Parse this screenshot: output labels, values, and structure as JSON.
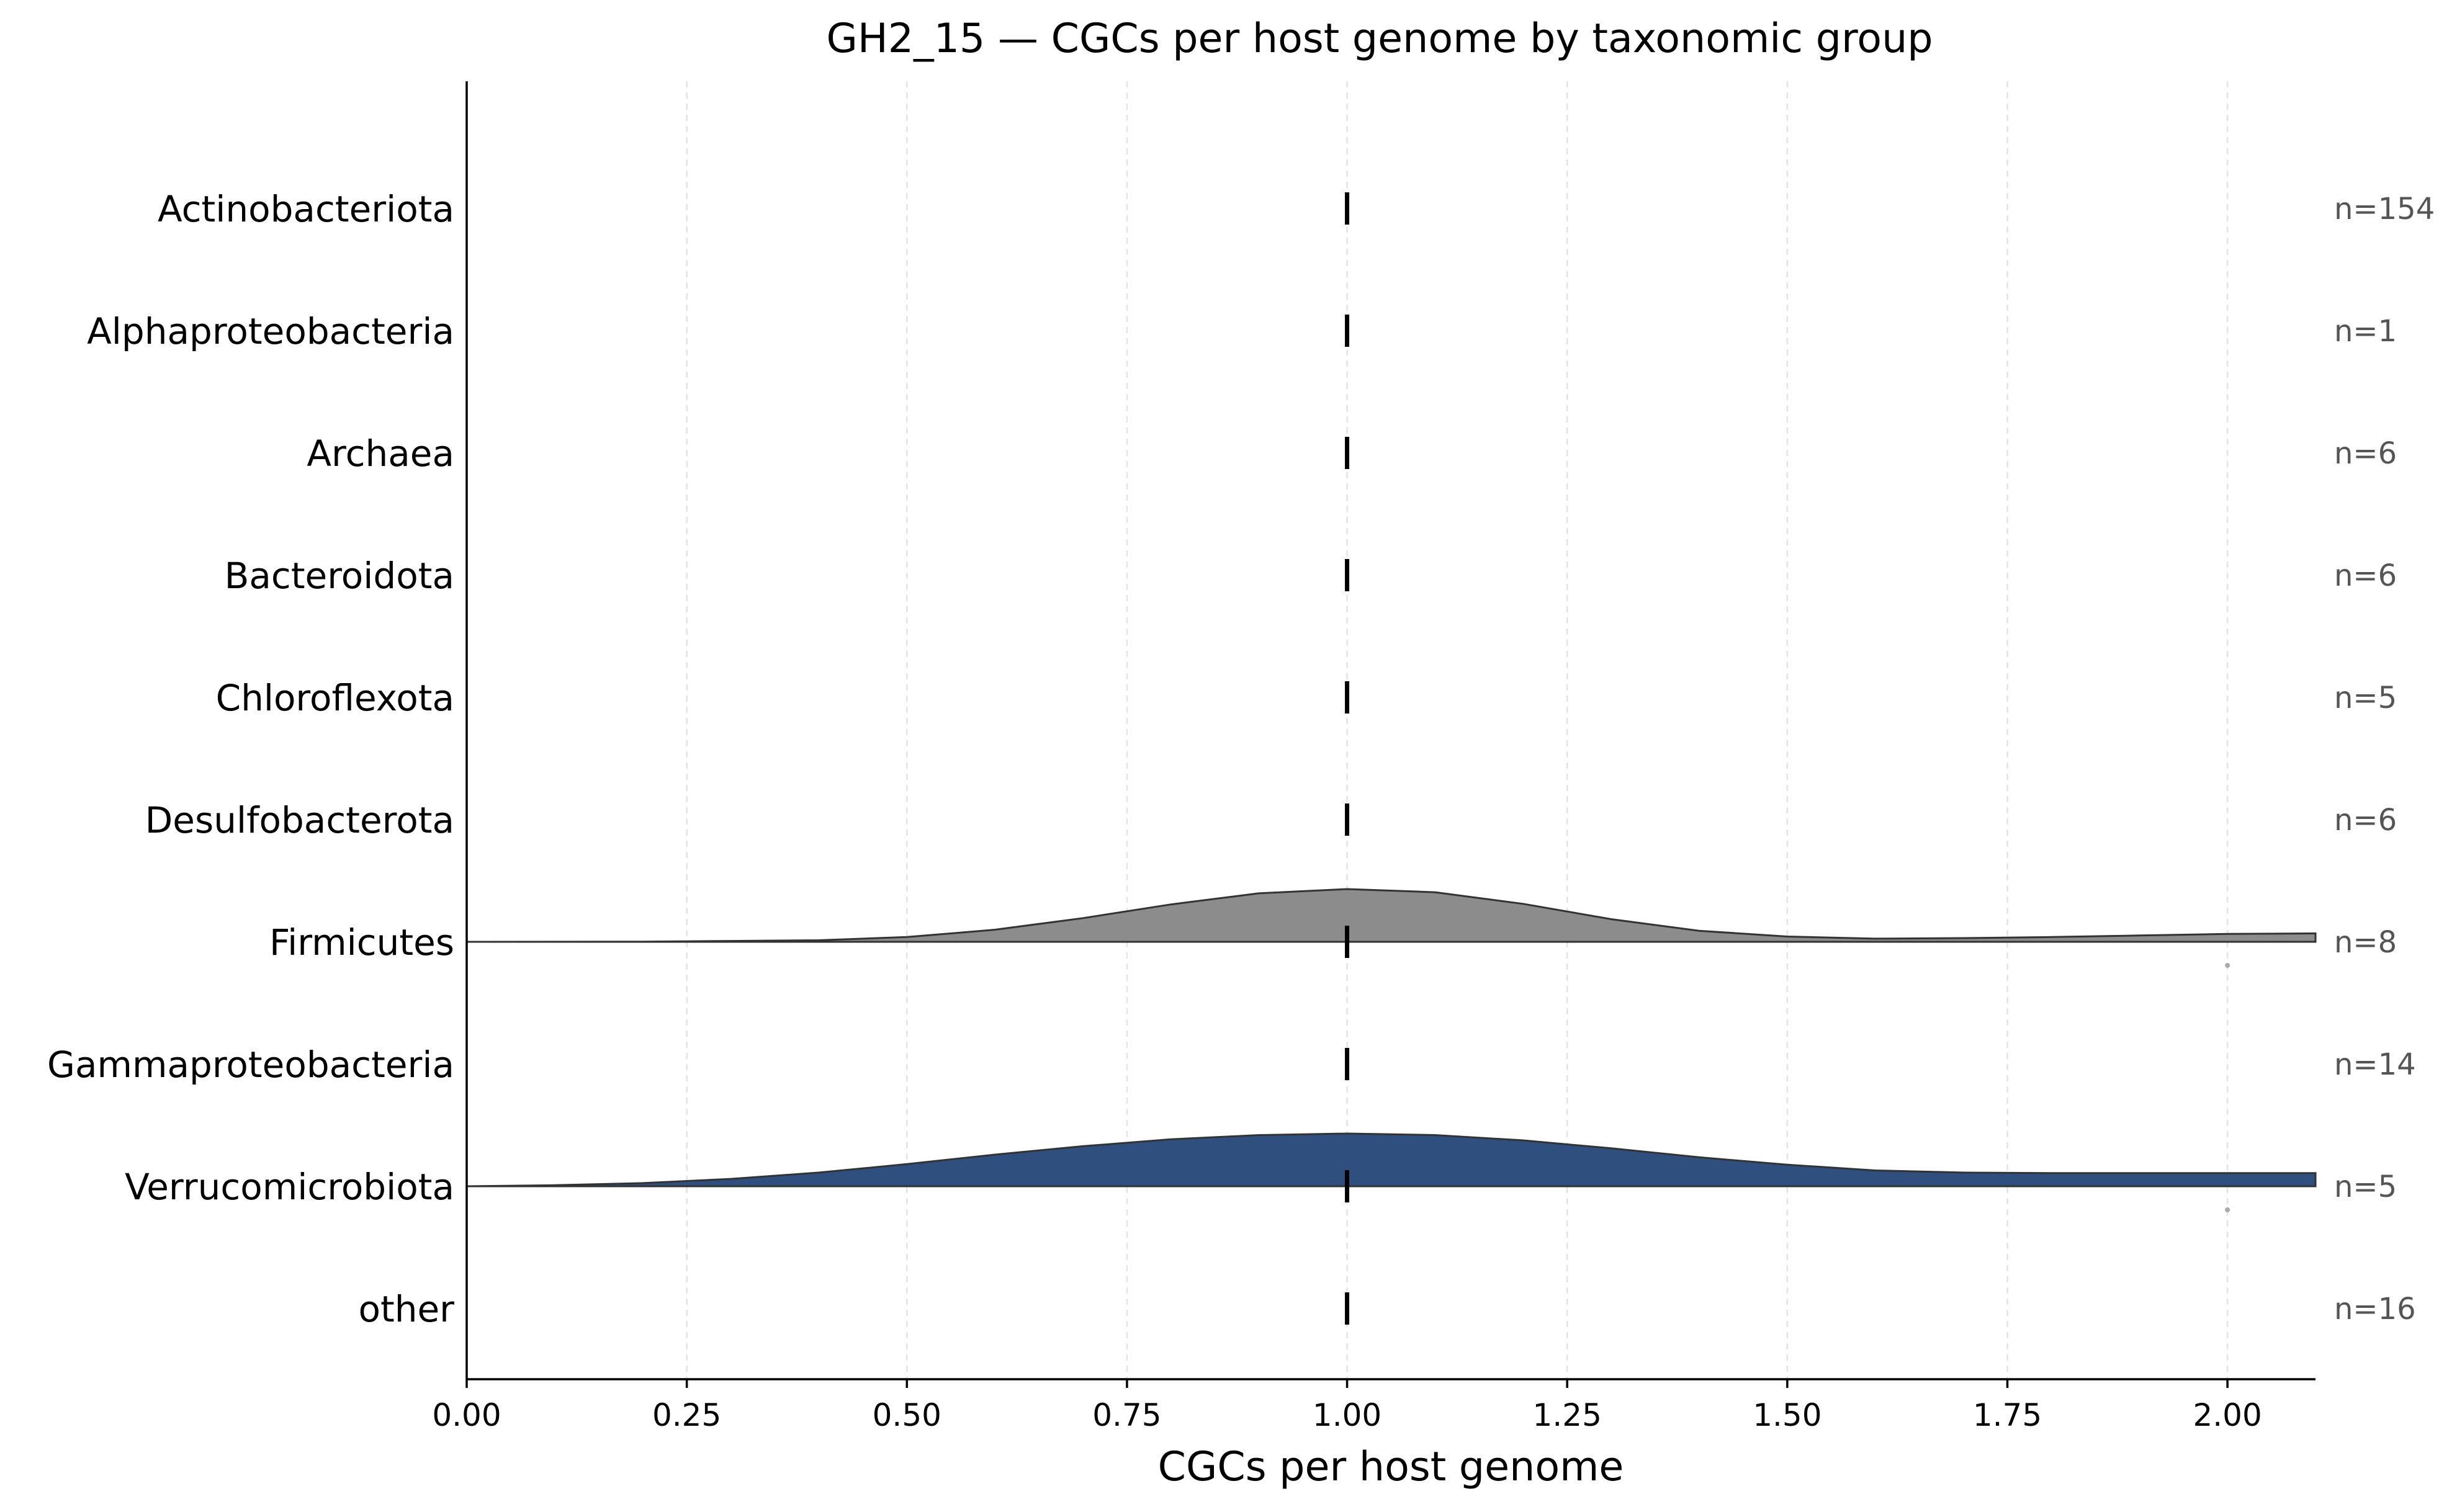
{
  "chart_data": {
    "type": "ridgeline",
    "title": "GH2_15 — CGCs per host genome by taxonomic group",
    "xlabel": "CGCs per host genome",
    "ylabel": "",
    "xlim": [
      0.0,
      2.1
    ],
    "xticks": [
      "0.00",
      "0.25",
      "0.50",
      "0.75",
      "1.00",
      "1.25",
      "1.50",
      "1.75",
      "2.00"
    ],
    "xtick_values": [
      0.0,
      0.25,
      0.5,
      0.75,
      1.0,
      1.25,
      1.5,
      1.75,
      2.0
    ],
    "grid_x": true,
    "categories": [
      "Actinobacteriota",
      "Alphaproteobacteria",
      "Archaea",
      "Bacteroidota",
      "Chloroflexota",
      "Desulfobacterota",
      "Firmicutes",
      "Gammaproteobacteria",
      "Verrucomicrobiota",
      "other"
    ],
    "groups": [
      {
        "name": "Actinobacteriota",
        "n_label": "n=154",
        "median": 1.0
      },
      {
        "name": "Alphaproteobacteria",
        "n_label": "n=1",
        "median": 1.0
      },
      {
        "name": "Archaea",
        "n_label": "n=6",
        "median": 1.0
      },
      {
        "name": "Bacteroidota",
        "n_label": "n=6",
        "median": 1.0
      },
      {
        "name": "Chloroflexota",
        "n_label": "n=5",
        "median": 1.0
      },
      {
        "name": "Desulfobacterota",
        "n_label": "n=6",
        "median": 1.0
      },
      {
        "name": "Firmicutes",
        "n_label": "n=8",
        "median": 1.0,
        "color": "#8c8c8c",
        "outliers": [
          2.0
        ],
        "density": {
          "x": [
            0.0,
            0.2,
            0.4,
            0.5,
            0.6,
            0.7,
            0.8,
            0.9,
            1.0,
            1.1,
            1.2,
            1.3,
            1.4,
            1.5,
            1.6,
            1.7,
            1.8,
            1.9,
            2.0,
            2.1
          ],
          "y": [
            0.0,
            0.003,
            0.03,
            0.09,
            0.23,
            0.45,
            0.71,
            0.92,
            1.0,
            0.94,
            0.72,
            0.43,
            0.21,
            0.1,
            0.06,
            0.07,
            0.09,
            0.12,
            0.15,
            0.16
          ]
        }
      },
      {
        "name": "Gammaproteobacteria",
        "n_label": "n=14",
        "median": 1.0
      },
      {
        "name": "Verrucomicrobiota",
        "n_label": "n=5",
        "median": 1.0,
        "color": "#2f4f7f",
        "outliers": [
          2.0
        ],
        "density": {
          "x": [
            0.0,
            0.1,
            0.2,
            0.3,
            0.4,
            0.5,
            0.6,
            0.7,
            0.8,
            0.9,
            1.0,
            1.1,
            1.2,
            1.3,
            1.4,
            1.5,
            1.6,
            1.7,
            1.8,
            1.9,
            2.0,
            2.1
          ],
          "y": [
            0.0,
            0.02,
            0.06,
            0.14,
            0.26,
            0.42,
            0.6,
            0.76,
            0.89,
            0.97,
            1.0,
            0.97,
            0.87,
            0.72,
            0.55,
            0.41,
            0.3,
            0.26,
            0.25,
            0.25,
            0.25,
            0.25
          ]
        }
      },
      {
        "name": "other",
        "n_label": "n=16",
        "median": 1.0
      }
    ]
  }
}
